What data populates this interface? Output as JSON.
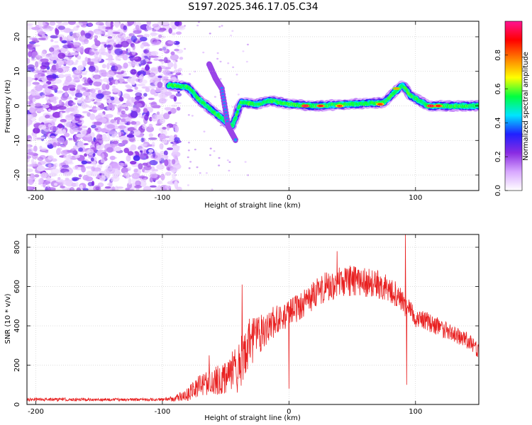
{
  "title": "S197.2025.346.17.05.C34",
  "chart_data": [
    {
      "type": "heatmap",
      "xlabel": "Height of straight line (km)",
      "ylabel": "Frequency (Hz)",
      "xlim": [
        -207,
        150
      ],
      "ylim": [
        -24.5,
        24.5
      ],
      "xticks": [
        -200,
        -100,
        0,
        100
      ],
      "yticks": [
        -20,
        -10,
        0,
        10,
        20
      ],
      "colorbar": {
        "label": "Normalized spectral amplitude",
        "range": [
          0,
          1
        ],
        "ticks": [
          "0.0",
          "0.2",
          "0.4",
          "0.6",
          "0.8"
        ],
        "tick_values": [
          0.0,
          0.2,
          0.4,
          0.6,
          0.8
        ],
        "colors": [
          "#ffffff",
          "#d8a8ff",
          "#8a2be2",
          "#2020ff",
          "#00e5ff",
          "#00ff40",
          "#ffff00",
          "#ff8000",
          "#ff0000",
          "#ff1493"
        ]
      },
      "noise_region_x": [
        -207,
        -87
      ],
      "ridge": [
        {
          "x": -95,
          "y": 6
        },
        {
          "x": -80,
          "y": 5.5
        },
        {
          "x": -70,
          "y": 1.5
        },
        {
          "x": -62,
          "y": -1
        },
        {
          "x": -55,
          "y": -3
        },
        {
          "x": -45,
          "y": -6
        },
        {
          "x": -38,
          "y": 1
        },
        {
          "x": -25,
          "y": 0.5
        },
        {
          "x": -15,
          "y": 1.5
        },
        {
          "x": 0,
          "y": 0.5
        },
        {
          "x": 20,
          "y": 0
        },
        {
          "x": 50,
          "y": 0.5
        },
        {
          "x": 75,
          "y": 1
        },
        {
          "x": 85,
          "y": 4.5
        },
        {
          "x": 90,
          "y": 6
        },
        {
          "x": 96,
          "y": 3
        },
        {
          "x": 110,
          "y": 0
        },
        {
          "x": 130,
          "y": 0
        },
        {
          "x": 150,
          "y": 0
        }
      ],
      "hotspots": [
        {
          "x": 13,
          "y": 0,
          "v": 0.95
        },
        {
          "x": 25,
          "y": 0,
          "v": 0.9
        },
        {
          "x": 40,
          "y": 0,
          "v": 0.85
        },
        {
          "x": 72,
          "y": 0.5,
          "v": 0.85
        },
        {
          "x": 85,
          "y": 5,
          "v": 0.75
        },
        {
          "x": 112,
          "y": 0,
          "v": 0.95
        },
        {
          "x": 118,
          "y": 0,
          "v": 0.9
        }
      ],
      "side_branch": [
        {
          "x": -63,
          "y": 12
        },
        {
          "x": -58,
          "y": 8
        },
        {
          "x": -53,
          "y": 5
        },
        {
          "x": -48,
          "y": -6
        },
        {
          "x": -42,
          "y": -10
        }
      ]
    },
    {
      "type": "line",
      "xlabel": "Height of straight line (km)",
      "ylabel": "SNR (10 * v/v)",
      "xlim": [
        -207,
        150
      ],
      "ylim": [
        0,
        865
      ],
      "xticks": [
        -200,
        -100,
        0,
        100
      ],
      "yticks": [
        0,
        200,
        400,
        600,
        800
      ],
      "color": "#e82020",
      "envelope": [
        [
          -207,
          25
        ],
        [
          -100,
          25
        ],
        [
          -90,
          30
        ],
        [
          -80,
          50
        ],
        [
          -70,
          100
        ],
        [
          -60,
          120
        ],
        [
          -50,
          130
        ],
        [
          -40,
          200
        ],
        [
          -30,
          320
        ],
        [
          -20,
          380
        ],
        [
          -10,
          430
        ],
        [
          0,
          460
        ],
        [
          10,
          510
        ],
        [
          20,
          560
        ],
        [
          30,
          600
        ],
        [
          40,
          620
        ],
        [
          50,
          630
        ],
        [
          60,
          620
        ],
        [
          70,
          610
        ],
        [
          80,
          590
        ],
        [
          90,
          520
        ],
        [
          100,
          440
        ],
        [
          110,
          420
        ],
        [
          120,
          390
        ],
        [
          130,
          360
        ],
        [
          140,
          330
        ],
        [
          150,
          270
        ]
      ],
      "noise_amplitude": [
        [
          -207,
          8
        ],
        [
          -100,
          8
        ],
        [
          -90,
          15
        ],
        [
          -80,
          35
        ],
        [
          -70,
          60
        ],
        [
          -60,
          70
        ],
        [
          -50,
          80
        ],
        [
          -40,
          140
        ],
        [
          -30,
          130
        ],
        [
          -20,
          90
        ],
        [
          0,
          70
        ],
        [
          40,
          80
        ],
        [
          80,
          70
        ],
        [
          100,
          50
        ],
        [
          150,
          40
        ]
      ],
      "spikes": [
        {
          "x": -63,
          "y": 250
        },
        {
          "x": -37,
          "y": 610
        },
        {
          "x": -30,
          "y": 330
        },
        {
          "x": 0,
          "y": 80
        },
        {
          "x": 38,
          "y": 780
        },
        {
          "x": 92,
          "y": 865
        },
        {
          "x": 93,
          "y": 100
        }
      ]
    }
  ]
}
